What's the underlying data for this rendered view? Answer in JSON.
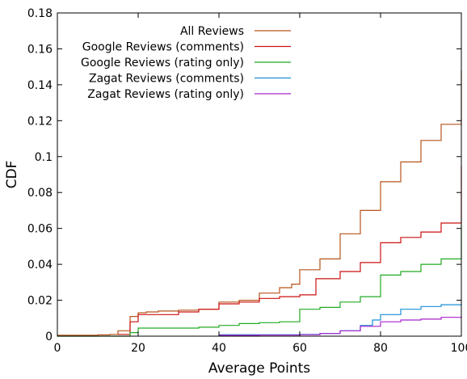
{
  "chart_data": {
    "type": "line",
    "xlabel": "Average Points",
    "ylabel": "CDF",
    "xlim": [
      0,
      100
    ],
    "ylim": [
      0,
      0.18
    ],
    "xticks": [
      "0",
      "20",
      "40",
      "60",
      "80",
      "100"
    ],
    "yticks": [
      "0",
      "0.02",
      "0.04",
      "0.06",
      "0.08",
      "0.1",
      "0.12",
      "0.14",
      "0.16",
      "0.18"
    ],
    "grid": false,
    "legend_position": "top-right",
    "series": [
      {
        "name": "All Reviews",
        "color": "#b8541a",
        "x": [
          0,
          10,
          13,
          15,
          18,
          20,
          22,
          25,
          30,
          35,
          40,
          40,
          45,
          50,
          55,
          58,
          60,
          60,
          65,
          70,
          75,
          80,
          80,
          85,
          90,
          95,
          100,
          100
        ],
        "y": [
          0.0005,
          0.0007,
          0.001,
          0.003,
          0.011,
          0.013,
          0.0135,
          0.014,
          0.0145,
          0.015,
          0.016,
          0.019,
          0.02,
          0.024,
          0.027,
          0.029,
          0.03,
          0.037,
          0.043,
          0.057,
          0.07,
          0.075,
          0.086,
          0.097,
          0.109,
          0.118,
          0.123,
          0.148
        ]
      },
      {
        "name": "Google Reviews (comments)",
        "color": "#cc1111",
        "x": [
          15,
          18,
          20,
          22,
          30,
          35,
          40,
          40,
          45,
          50,
          55,
          60,
          64,
          70,
          75,
          80,
          80,
          85,
          90,
          95,
          100,
          100
        ],
        "y": [
          0.001,
          0.008,
          0.012,
          0.012,
          0.0135,
          0.015,
          0.016,
          0.018,
          0.019,
          0.021,
          0.022,
          0.023,
          0.032,
          0.036,
          0.041,
          0.044,
          0.052,
          0.055,
          0.058,
          0.063,
          0.066,
          0.095
        ]
      },
      {
        "name": "Google Reviews (rating only)",
        "color": "#22aa22",
        "x": [
          0,
          15,
          18,
          20,
          30,
          35,
          40,
          45,
          50,
          55,
          58,
          60,
          60,
          65,
          70,
          75,
          80,
          80,
          85,
          90,
          95,
          100,
          100
        ],
        "y": [
          0,
          0,
          0.002,
          0.0045,
          0.0045,
          0.005,
          0.006,
          0.007,
          0.0075,
          0.008,
          0.008,
          0.008,
          0.015,
          0.016,
          0.019,
          0.022,
          0.023,
          0.034,
          0.036,
          0.04,
          0.043,
          0.044,
          0.062
        ]
      },
      {
        "name": "Zagat Reviews (comments)",
        "color": "#1a8fd6",
        "x": [
          40,
          50,
          60,
          65,
          70,
          75,
          78,
          80,
          85,
          90,
          95,
          100
        ],
        "y": [
          0.0008,
          0.0008,
          0.001,
          0.0015,
          0.003,
          0.006,
          0.009,
          0.012,
          0.015,
          0.0165,
          0.0175,
          0.018
        ]
      },
      {
        "name": "Zagat Reviews (rating only)",
        "color": "#aa22cc",
        "x": [
          40,
          50,
          60,
          65,
          70,
          75,
          80,
          85,
          90,
          95,
          100
        ],
        "y": [
          0.0005,
          0.0006,
          0.0008,
          0.0015,
          0.003,
          0.0055,
          0.008,
          0.009,
          0.0095,
          0.0105,
          0.011
        ]
      }
    ]
  }
}
